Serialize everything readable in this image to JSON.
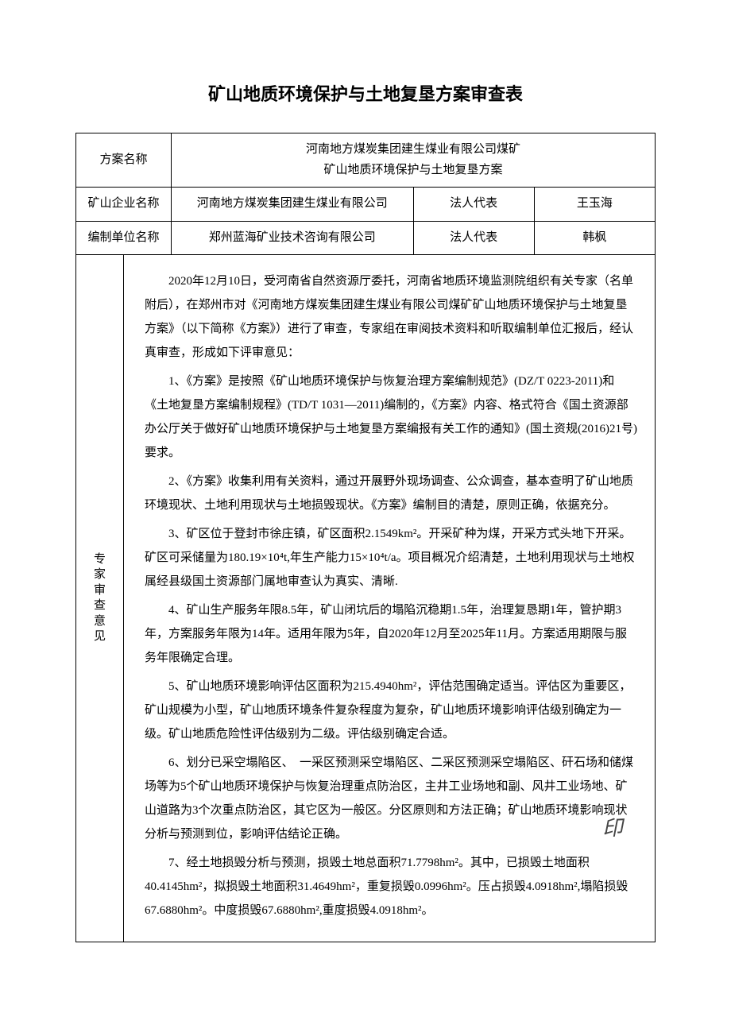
{
  "title": "矿山地质环境保护与土地复垦方案审查表",
  "header": {
    "plan_label": "方案名称",
    "plan_value_line1": "河南地方煤炭集团建生煤业有限公司煤矿",
    "plan_value_line2": "矿山地质环境保护与土地复垦方案",
    "company_label": "矿山企业名称",
    "company_value": "河南地方煤炭集团建生煤业有限公司",
    "company_rep_label": "法人代表",
    "company_rep_value": "王玉海",
    "compiler_label": "编制单位名称",
    "compiler_value": "郑州蓝海矿业技术咨询有限公司",
    "compiler_rep_label": "法人代表",
    "compiler_rep_value": "韩枫"
  },
  "opinion": {
    "label": "专家审查意见",
    "paragraphs": [
      "2020年12月10日，受河南省自然资源厅委托，河南省地质环境监测院组织有关专家（名单附后），在郑州市对《河南地方煤炭集团建生煤业有限公司煤矿矿山地质环境保护与土地复垦方案》（以下简称《方案》）进行了审查，专家组在审阅技术资料和听取编制单位汇报后，经认真审查，形成如下评审意见：",
      "1、《方案》是按照《矿山地质环境保护与恢复治理方案编制规范》(DZ/T 0223-2011)和《土地复垦方案编制规程》(TD/T 1031—2011)编制的，《方案》内容、格式符合《国土资源部办公厅关于做好矿山地质环境保护与土地复垦方案编报有关工作的通知》(国土资规(2016)21号)要求。",
      "2、《方案》收集利用有关资料，通过开展野外现场调查、公众调查，基本查明了矿山地质环境现状、土地利用现状与土地损毁现状。《方案》编制目的清楚，原则正确，依据充分。",
      "3、矿区位于登封市徐庄镇，矿区面积2.1549km²。开采矿种为煤，开采方式头地下开采。矿区可采储量为180.19×10⁴t,年生产能力15×10⁴t/a。项目概况介绍清楚，土地利用现状与土地权属经县级国土资源部门属地审查认为真实、清晰.",
      "4、矿山生产服务年限8.5年，矿山闭坑后的塌陷沉稳期1.5年，治理复恳期1年，管护期3年，方案服务年限为14年。适用年限为5年，自2020年12月至2025年11月。方案适用期限与服务年限确定合理。",
      "5、矿山地质环境影响评估区面积为215.4940hm²，评估范围确定适当。评估区为重要区，矿山规模为小型，矿山地质环境条件复杂程度为复杂，矿山地质环境影响评估级别确定为一级。矿山地质危险性评估级别为二级。评估级别确定合适。",
      "6、划分已采空塌陷区、　一采区预测采空塌陷区、二采区预测采空塌陷区、矸石场和储煤场等为5个矿山地质环境保护与恢复治理重点防治区，主井工业场地和副、风井工业场地、矿山道路为3个次重点防治区，其它区为一般区。分区原则和方法正确；矿山地质环境影响现状分析与预测到位，影响评估结论正确。",
      "7、经土地损毁分析与预测，损毁土地总面积71.7798hm²。其中，已损毁土地面积40.4145hm²，拟损毁土地面积31.4649hm²，重复损毁0.0996hm²。压占损毁4.0918hm²,塌陷损毁67.6880hm²。中度损毁67.6880hm²,重度损毁4.0918hm²。"
    ],
    "stamp": "印"
  }
}
